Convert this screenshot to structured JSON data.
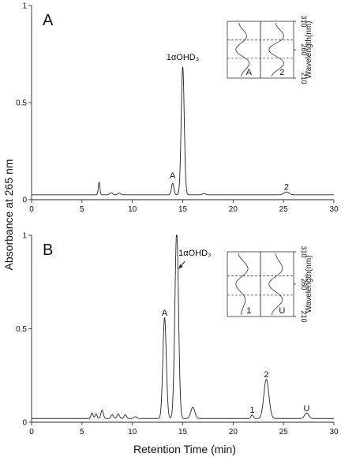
{
  "chart_data": [
    {
      "id": "A",
      "type": "line",
      "panel_label": "A",
      "xlim": [
        0,
        30
      ],
      "ylim": [
        0,
        1
      ],
      "x_ticks": [
        "0",
        "5",
        "10",
        "15",
        "20",
        "25",
        "30"
      ],
      "y_ticks": [
        "0",
        "0.5",
        "1"
      ],
      "baseline": 0.025,
      "peaks": [
        {
          "x": 6.7,
          "y": 0.065,
          "w": 0.08
        },
        {
          "x": 7.9,
          "y": 0.01,
          "w": 0.15
        },
        {
          "x": 8.7,
          "y": 0.008,
          "w": 0.15
        },
        {
          "x": 14.0,
          "y": 0.06,
          "w": 0.12
        },
        {
          "x": 15.0,
          "y": 0.66,
          "w": 0.15
        },
        {
          "x": 17.1,
          "y": 0.007,
          "w": 0.15
        },
        {
          "x": 25.3,
          "y": 0.015,
          "w": 0.25
        }
      ],
      "annotations": [
        {
          "text": "A",
          "x": 14.0,
          "y": 0.11
        },
        {
          "text": "1αOHD₃",
          "x": 15.0,
          "y": 0.72
        },
        {
          "text": "2",
          "x": 25.3,
          "y": 0.05
        }
      ],
      "inset": {
        "left_label": "A",
        "right_label": "2",
        "axis_title": "Wavelength(nm)",
        "ticks": [
          "310",
          "260",
          "210"
        ],
        "wavelength_range": [
          210,
          310
        ],
        "dashed_at": [
          245,
          277
        ],
        "left_spectrum": [
          0.32,
          0.6,
          0.2,
          0.7,
          0.4
        ],
        "right_spectrum": [
          0.45,
          0.75,
          0.2,
          0.75,
          0.3
        ]
      }
    },
    {
      "id": "B",
      "type": "line",
      "panel_label": "B",
      "xlim": [
        0,
        30
      ],
      "ylim": [
        0,
        1
      ],
      "x_ticks": [
        "0",
        "5",
        "10",
        "15",
        "20",
        "25",
        "30"
      ],
      "y_ticks": [
        "0",
        "0.5",
        "1"
      ],
      "baseline": 0.02,
      "peaks": [
        {
          "x": 6.0,
          "y": 0.03,
          "w": 0.1
        },
        {
          "x": 6.4,
          "y": 0.025,
          "w": 0.1
        },
        {
          "x": 7.0,
          "y": 0.045,
          "w": 0.12
        },
        {
          "x": 8.0,
          "y": 0.02,
          "w": 0.12
        },
        {
          "x": 8.6,
          "y": 0.025,
          "w": 0.12
        },
        {
          "x": 9.3,
          "y": 0.02,
          "w": 0.12
        },
        {
          "x": 10.3,
          "y": 0.01,
          "w": 0.15
        },
        {
          "x": 13.2,
          "y": 0.54,
          "w": 0.17
        },
        {
          "x": 14.4,
          "y": 1.0,
          "w": 0.18
        },
        {
          "x": 16.0,
          "y": 0.06,
          "w": 0.2
        },
        {
          "x": 21.9,
          "y": 0.02,
          "w": 0.12
        },
        {
          "x": 23.3,
          "y": 0.21,
          "w": 0.25
        },
        {
          "x": 27.3,
          "y": 0.03,
          "w": 0.2
        }
      ],
      "annotations": [
        {
          "text": "A",
          "x": 13.2,
          "y": 0.57
        },
        {
          "text": "1αOHD₃",
          "x": 16.2,
          "y": 0.89
        },
        {
          "text": "1",
          "x": 21.9,
          "y": 0.05
        },
        {
          "text": "2",
          "x": 23.3,
          "y": 0.24
        },
        {
          "text": "U",
          "x": 27.3,
          "y": 0.06
        }
      ],
      "arrow": {
        "from": [
          15.2,
          0.86
        ],
        "to": [
          14.6,
          0.82
        ]
      },
      "inset": {
        "left_label": "1",
        "right_label": "U",
        "axis_title": "Wavelength(nm)",
        "ticks": [
          "310",
          "260",
          "210"
        ],
        "wavelength_range": [
          210,
          310
        ],
        "dashed_at": [
          243,
          273
        ],
        "left_spectrum": [
          0.3,
          0.65,
          0.2,
          0.55,
          0.4
        ],
        "right_spectrum": [
          0.45,
          0.7,
          0.2,
          0.7,
          0.3
        ]
      }
    }
  ],
  "axis_titles": {
    "x": "Retention Time (min)",
    "y": "Absorbance at 265 nm"
  }
}
